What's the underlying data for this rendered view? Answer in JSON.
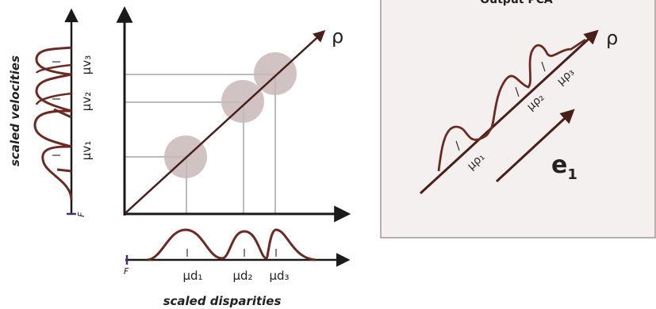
{
  "colors": {
    "curve": "#6b2a22",
    "axis": "#1a1a1a",
    "guide": "#777777",
    "blob": "#c9b8b8",
    "panel_bg": "#f5f0f0",
    "panel_border": "#a59595",
    "marker": "#4b2e7a"
  },
  "left_axis": {
    "title": "scaled velocities",
    "origin_label": "F",
    "means": [
      "μv₁",
      "μv₂",
      "μv₃"
    ]
  },
  "bottom_axis": {
    "title": "scaled disparities",
    "origin_label": "F",
    "means": [
      "μd₁",
      "μd₂",
      "μd₃"
    ]
  },
  "main_plot": {
    "diagonal_label": "ρ"
  },
  "pca_panel": {
    "title": "Output PCA",
    "axis_label": "ρ",
    "eigen_label": "e",
    "eigen_subscript": "1",
    "means": [
      "μρ₁",
      "μρ₂",
      "μρ₃"
    ]
  }
}
